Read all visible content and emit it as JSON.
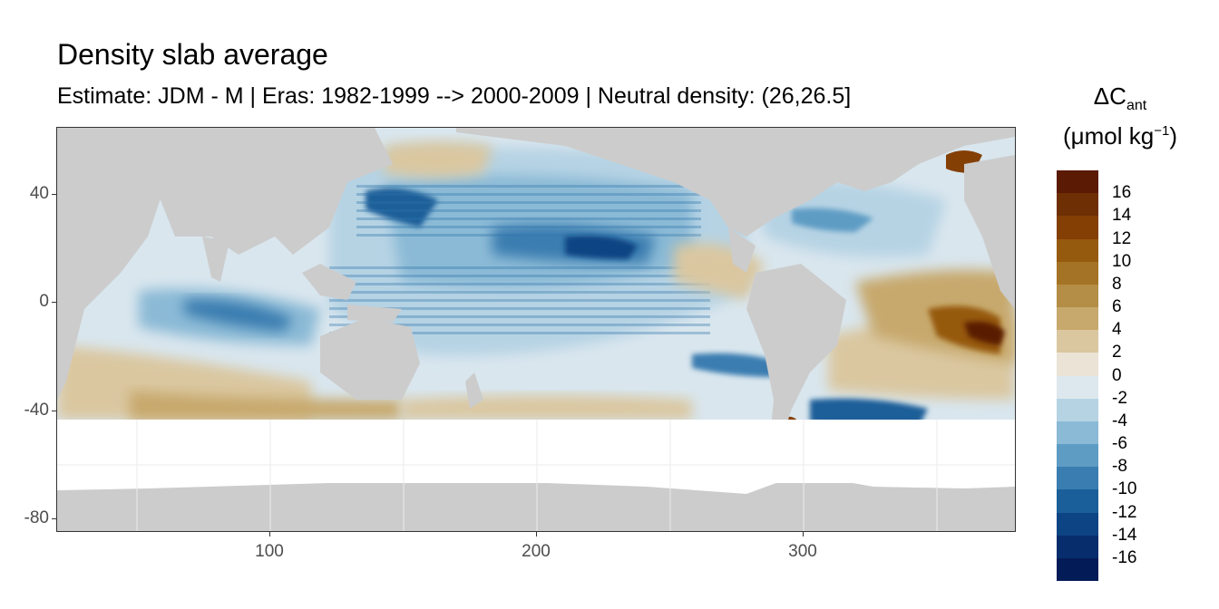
{
  "title": "Density slab average",
  "subtitle": "Estimate: JDM - M | Eras: 1982-1999 --> 2000-2009 | Neutral density: (26,26.5]",
  "map": {
    "x_ticks": [
      100,
      200,
      300
    ],
    "y_ticks": [
      40,
      0,
      -40,
      -80
    ],
    "x_range": [
      20,
      380
    ],
    "y_range": [
      -85,
      65
    ],
    "land_color": "#cccccc",
    "ocean_nodata_color": "#ffffff"
  },
  "legend": {
    "title_main": "ΔC",
    "title_sub": "ant",
    "unit_prefix": "(μmol kg",
    "unit_sup": "−1",
    "unit_suffix": ")",
    "labels": [
      "16",
      "14",
      "12",
      "10",
      "8",
      "6",
      "4",
      "2",
      "0",
      "-2",
      "-4",
      "-6",
      "-8",
      "-10",
      "-12",
      "-14",
      "-16"
    ],
    "colors": [
      "#5a1a03",
      "#6f2f04",
      "#843f05",
      "#965a0e",
      "#a47325",
      "#b48d46",
      "#c7a96d",
      "#dac7a0",
      "#ebe3d5",
      "#dde8ee",
      "#b6d3e4",
      "#8bbad6",
      "#5e9cc4",
      "#3a7db0",
      "#1a5f99",
      "#0d4483",
      "#072d6d",
      "#031b56"
    ]
  }
}
